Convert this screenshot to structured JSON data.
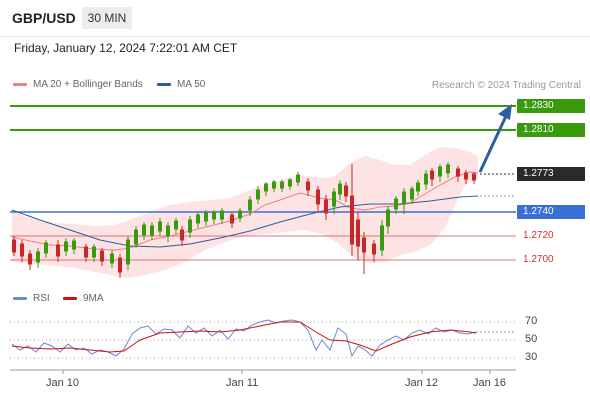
{
  "header": {
    "symbol": "GBP/USD",
    "timeframe": "30 MIN"
  },
  "datetime": "Friday, January 12, 2024 7:22:01 AM CET",
  "legend": {
    "ma20": {
      "label": "MA 20 + Bollinger Bands",
      "color": "#f08080"
    },
    "ma50": {
      "label": "MA 50",
      "color": "#2f5d9e"
    }
  },
  "copyright": "Research © 2024 Trading Central",
  "levels": {
    "r2": "1.2830",
    "r1": "1.2810",
    "last": "1.2773",
    "pivot": "1.2740",
    "s1": "1.2720",
    "s2": "1.2700"
  },
  "rsi_legend": {
    "rsi": "RSI",
    "ma": "9MA"
  },
  "rsi_ticks": [
    "70",
    "50",
    "30"
  ],
  "x_labels": [
    "Jan 10",
    "Jan 11",
    "Jan 12",
    "Jan 16"
  ],
  "colors": {
    "up": "#3a9a0e",
    "down": "#c62828",
    "pivot": "#3a6fd8",
    "support": "#e07070",
    "band_fill": "#fde3e3",
    "rsi": "#6688d8",
    "rsi_ma": "#d01010"
  }
}
